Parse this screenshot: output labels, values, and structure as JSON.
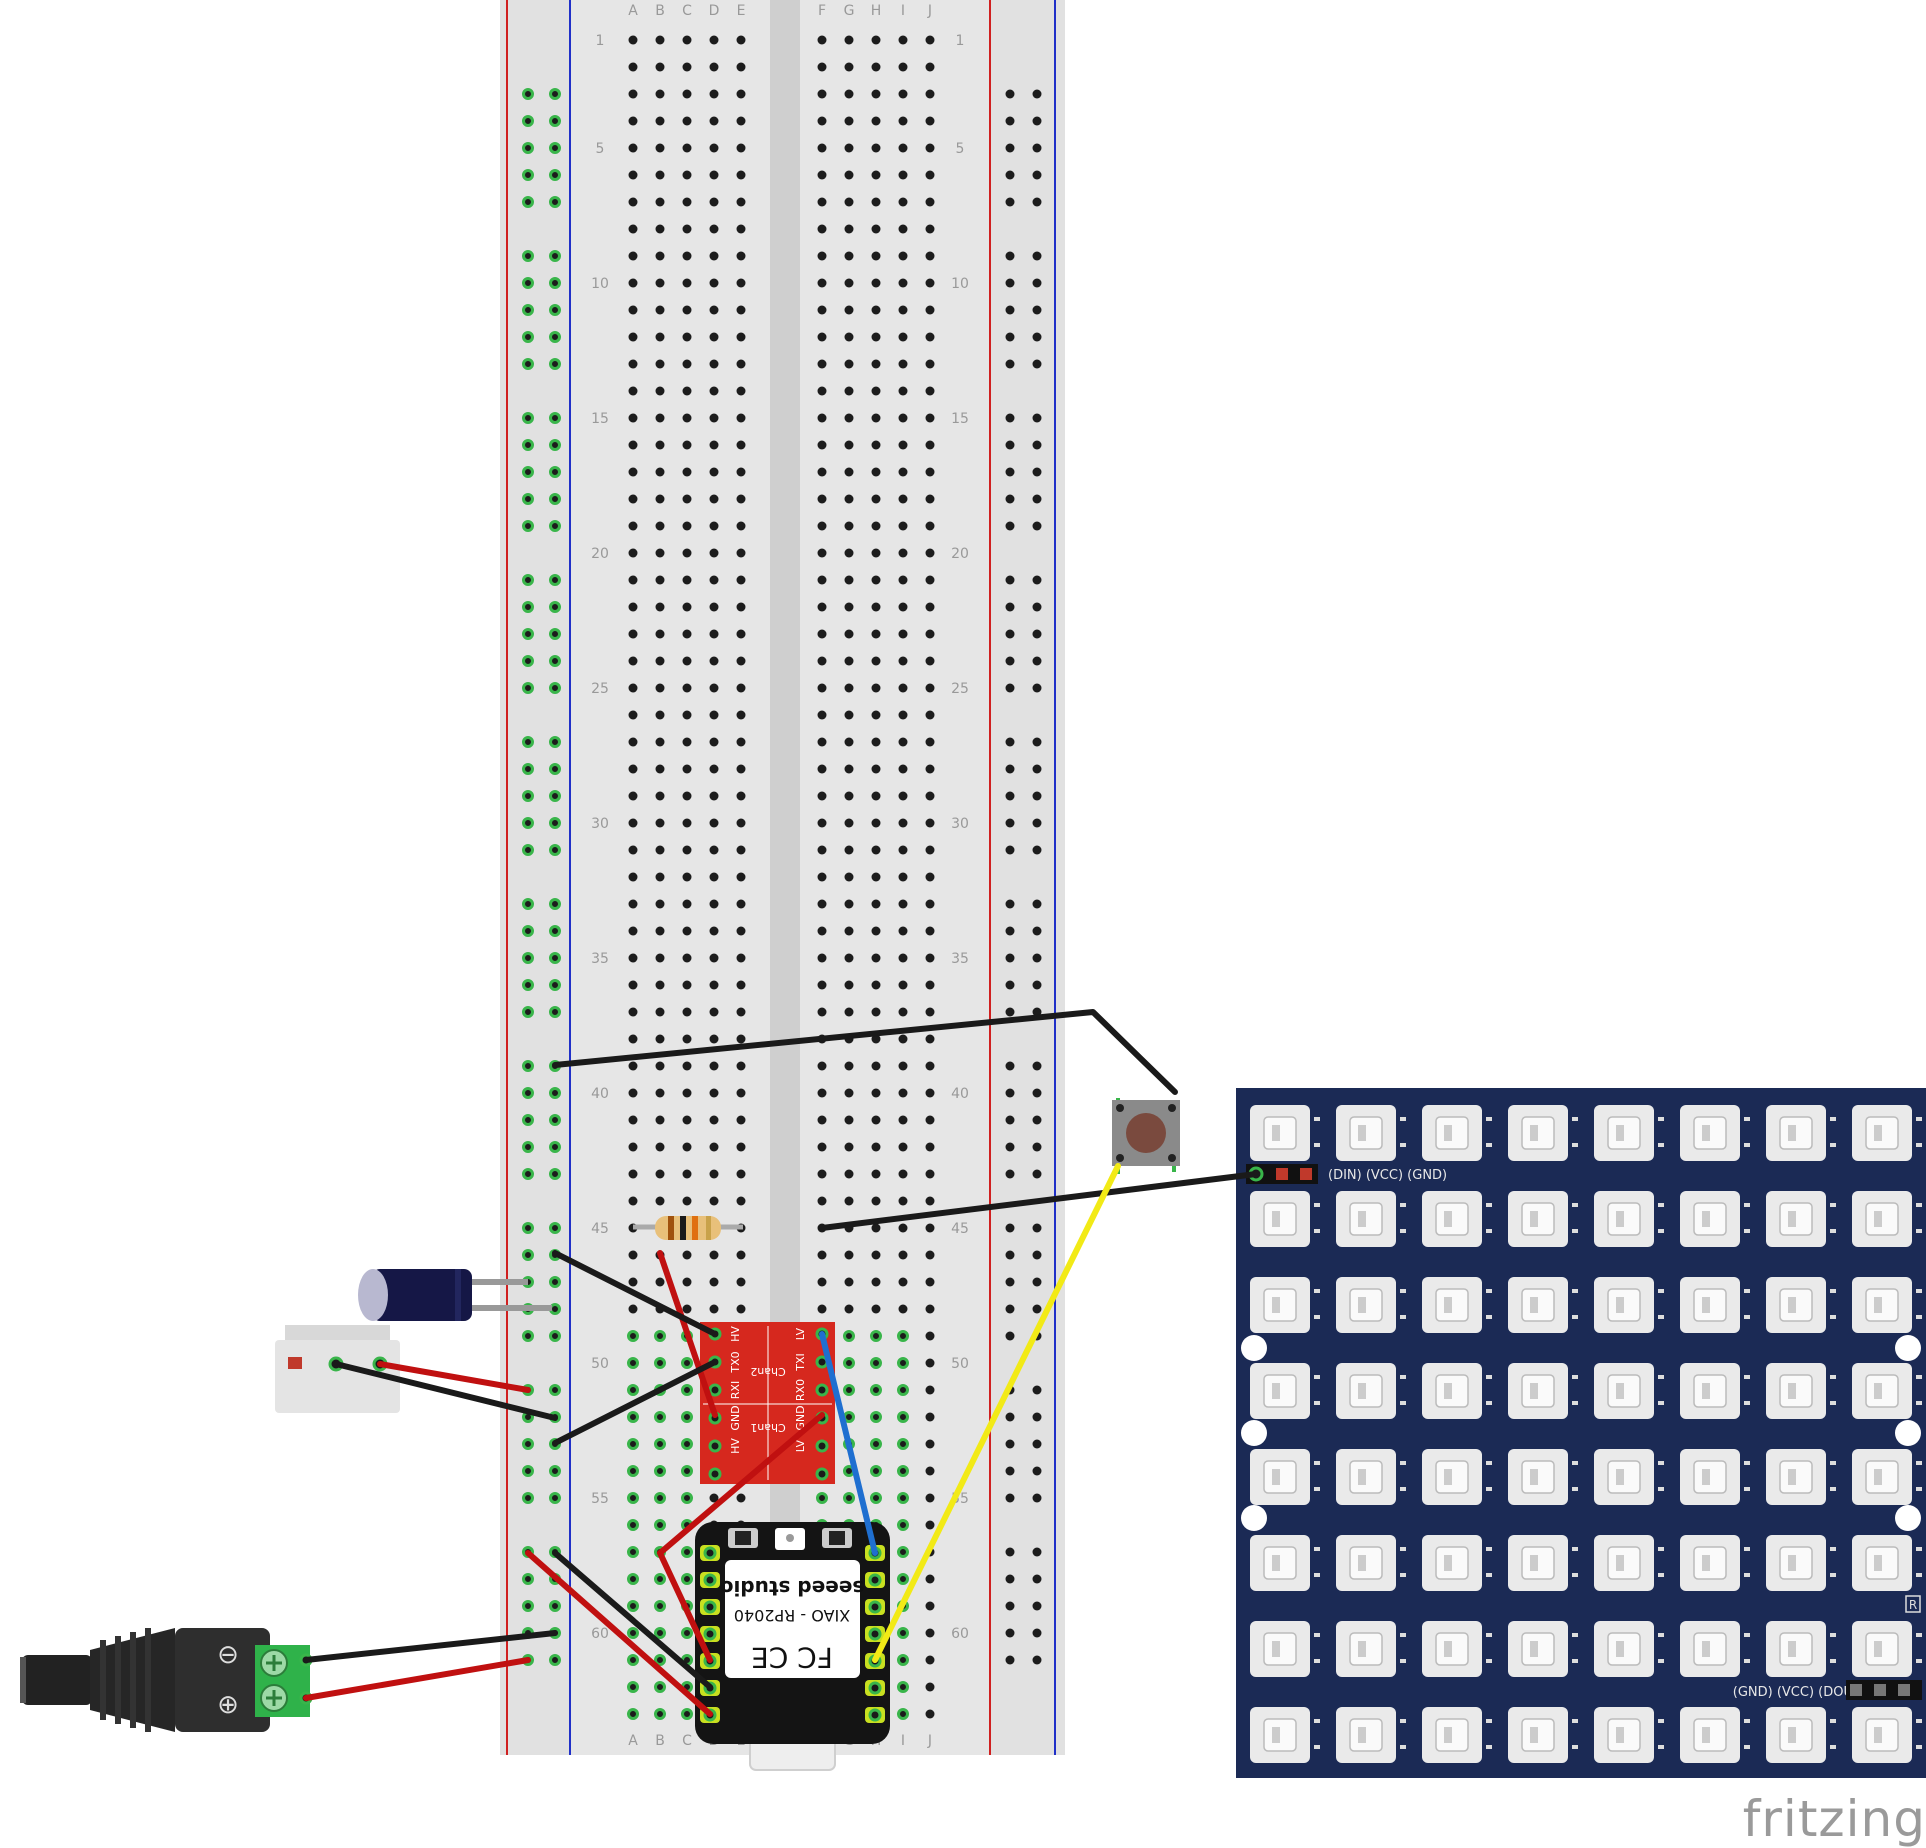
{
  "breadboard": {
    "column_letters_left": [
      "A",
      "B",
      "C",
      "D",
      "E"
    ],
    "column_letters_right": [
      "F",
      "G",
      "H",
      "I",
      "J"
    ],
    "row_labels": [
      "1",
      "5",
      "10",
      "15",
      "20",
      "25",
      "30",
      "35",
      "40",
      "45",
      "50",
      "55",
      "60"
    ],
    "row_count": 63,
    "colors": {
      "body": "#e6e6e6",
      "channel": "#cfcfcf",
      "rail_red": "#d02020",
      "rail_blue": "#2030c8",
      "hole": "#1c1c1c",
      "used_hole": "#39b54a"
    }
  },
  "level_shifter": {
    "left_pins": [
      "HV",
      "RXI",
      "GND",
      "HV",
      "RXI",
      "TX0"
    ],
    "right_pins": [
      "LV",
      "TXI",
      "GND",
      "LV",
      "RX0",
      "TXI"
    ],
    "left_pins_top": [
      "HV",
      "TX0",
      "RXI",
      "GND",
      "HV"
    ],
    "right_pins_top": [
      "LV",
      "TXI",
      "RX0",
      "GND",
      "LV"
    ],
    "chan_top": "Chan2",
    "chan_bottom": "Chan1",
    "color": "#d6281e"
  },
  "xiao": {
    "brand": "seeed studio",
    "model": "XIAO - RP2040",
    "cert": "FC CE"
  },
  "led_matrix": {
    "rows": 8,
    "cols": 8,
    "input_label": "(DIN) (VCC) (GND)",
    "output_label": "(GND) (VCC) (DOUT)",
    "mark": "R",
    "color": "#1b2a55"
  },
  "dc_jack": {
    "minus": "⊖",
    "plus": "⊕"
  },
  "wires": {
    "colors": {
      "black": "#1a1a1a",
      "red": "#c01010",
      "blue": "#1f6fd0",
      "yellow": "#f2ea16"
    }
  },
  "brand_mark": "fritzing"
}
